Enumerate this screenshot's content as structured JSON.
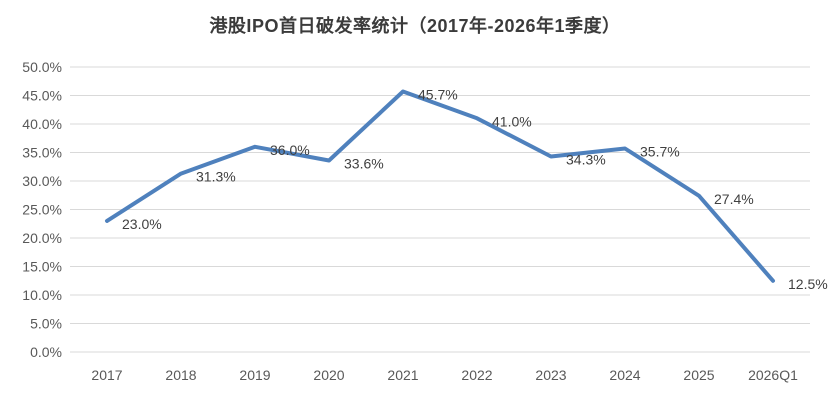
{
  "chart_data": {
    "type": "line",
    "title": "港股IPO首日破发率统计（2017年-2026年1季度）",
    "categories": [
      "2017",
      "2018",
      "2019",
      "2020",
      "2021",
      "2022",
      "2023",
      "2024",
      "2025",
      "2026Q1"
    ],
    "values": [
      23.0,
      31.3,
      36.0,
      33.6,
      45.7,
      41.0,
      34.3,
      35.7,
      27.4,
      12.5
    ],
    "data_labels": [
      "23.0%",
      "31.3%",
      "36.0%",
      "33.6%",
      "45.7%",
      "41.0%",
      "34.3%",
      "35.7%",
      "27.4%",
      "12.5%"
    ],
    "y_ticks": [
      "0.0%",
      "5.0%",
      "10.0%",
      "15.0%",
      "20.0%",
      "25.0%",
      "30.0%",
      "35.0%",
      "40.0%",
      "45.0%",
      "50.0%"
    ],
    "ylim": [
      0,
      50
    ],
    "y_tick_step": 5,
    "xlabel": "",
    "ylabel": "",
    "grid": true,
    "legend": "none",
    "colors": {
      "line": "#4F81BD",
      "grid": "#D9D9D9",
      "data_label": "#404040",
      "tick_label": "#595959",
      "title": "#3b3b3b"
    }
  }
}
